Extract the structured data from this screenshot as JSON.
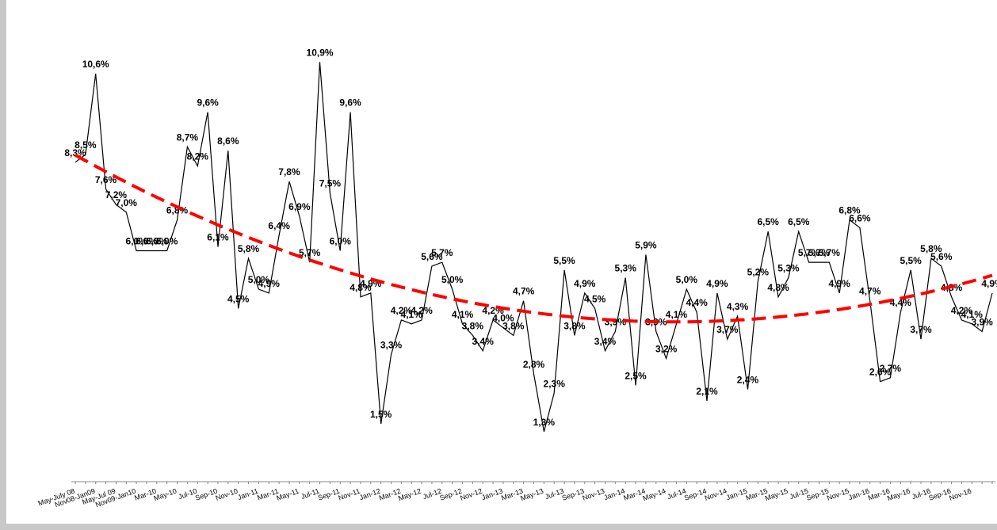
{
  "chart_data": {
    "type": "line",
    "categories": [
      "May-July 08",
      null,
      "Nov08-Jan09",
      null,
      "May-Jul 09",
      null,
      "Nov09-Jan10",
      null,
      "Mar-10",
      null,
      "May-10",
      null,
      "Jul-10",
      null,
      "Sep-10",
      null,
      "Nov-10",
      null,
      "Jan-11",
      null,
      "Mar-11",
      null,
      "May-11",
      null,
      "Jul-11",
      null,
      "Sep-11",
      null,
      "Nov-11",
      null,
      "Jan-12",
      null,
      "Mar-12",
      null,
      "May-12",
      null,
      "Jul-12",
      null,
      "Sep-12",
      null,
      "Nov-12",
      null,
      "Jan-13",
      null,
      "Mar-13",
      null,
      "May-13",
      null,
      "Jul-13",
      null,
      "Sep-13",
      null,
      "Nov-13",
      null,
      "Jan-14",
      null,
      "Mar-14",
      null,
      "May-14",
      null,
      "Jul-14",
      null,
      "Sep-14",
      null,
      "Nov-14",
      null,
      "Jan-15",
      null,
      "Mar-15",
      null,
      "May-15",
      null,
      "Jul-15",
      null,
      "Sep-15",
      null,
      "Nov-15",
      null,
      "Jan-16",
      null,
      "Mar-16",
      null,
      "May-16",
      null,
      "Jul-16",
      null,
      "Sep-16",
      null,
      "Nov-16",
      null,
      null
    ],
    "series": [
      {
        "color": "#000000",
        "values": [
          8.3,
          8.5,
          10.6,
          7.6,
          7.2,
          7.0,
          6.0,
          6.0,
          6.0,
          6.0,
          6.8,
          8.7,
          8.2,
          9.6,
          6.1,
          8.6,
          4.5,
          5.8,
          5.0,
          4.9,
          6.4,
          7.8,
          6.9,
          5.7,
          10.9,
          7.5,
          6.0,
          9.6,
          4.8,
          4.9,
          1.5,
          3.3,
          4.2,
          4.1,
          4.2,
          5.6,
          5.7,
          5.0,
          4.1,
          3.8,
          3.4,
          4.2,
          4.0,
          3.8,
          4.7,
          2.8,
          1.3,
          2.3,
          5.5,
          3.8,
          4.9,
          4.5,
          3.4,
          3.9,
          5.3,
          2.5,
          5.9,
          3.9,
          3.2,
          4.1,
          5.0,
          4.4,
          2.1,
          4.9,
          3.7,
          4.3,
          2.4,
          5.2,
          6.5,
          4.8,
          5.3,
          6.5,
          5.7,
          5.7,
          5.7,
          4.9,
          6.8,
          6.6,
          4.7,
          2.6,
          2.7,
          4.4,
          5.5,
          3.7,
          5.8,
          5.6,
          4.8,
          4.2,
          4.1,
          3.9,
          4.9
        ],
        "value_labels": [
          "8,3%",
          "8,5%",
          "10,6%",
          "7,6%",
          "7,2%",
          "7,0%",
          "6,0%",
          "6,0%",
          "6,0%",
          "6,0%",
          "6,8%",
          "8,7%",
          "8,2%",
          "9,6%",
          "6,1%",
          "8,6%",
          "4,5%",
          "5,8%",
          "5,0%",
          "4,9%",
          "6,4%",
          "7,8%",
          "6,9%",
          "5,7%",
          "10,9%",
          "7,5%",
          "6,0%",
          "9,6%",
          "4,8%",
          "4,9%",
          "1,5%",
          "3,3%",
          "4,2%",
          "4,1%",
          "4,2%",
          "5,6%",
          "5,7%",
          "5,0%",
          "4,1%",
          "3,8%",
          "3,4%",
          "4,2%",
          "4,0%",
          "3,8%",
          "4,7%",
          "2,8%",
          "1,3%",
          "2,3%",
          "5,5%",
          "3,8%",
          "4,9%",
          "4,5%",
          "3,4%",
          "3,9%",
          "5,3%",
          "2,5%",
          "5,9%",
          "3,9%",
          "3,2%",
          "4,1%",
          "5,0%",
          "4,4%",
          "2,1%",
          "4,9%",
          "3,7%",
          "4,3%",
          "2,4%",
          "5,2%",
          "6,5%",
          "4,8%",
          "5,3%",
          "6,5%",
          "5,7%",
          "5,7%",
          "5,7%",
          "4,9%",
          "6,8%",
          "6,6%",
          "4,7%",
          "2,6%",
          "2,7%",
          "4,4%",
          "5,5%",
          "3,7%",
          "5,8%",
          "5,6%",
          "4,8%",
          "4,2%",
          "4,1%",
          "3,9%",
          "4,9%"
        ]
      }
    ],
    "ylim": [
      0,
      12
    ],
    "trendline": {
      "order": 2,
      "color": "#ff0000"
    }
  }
}
